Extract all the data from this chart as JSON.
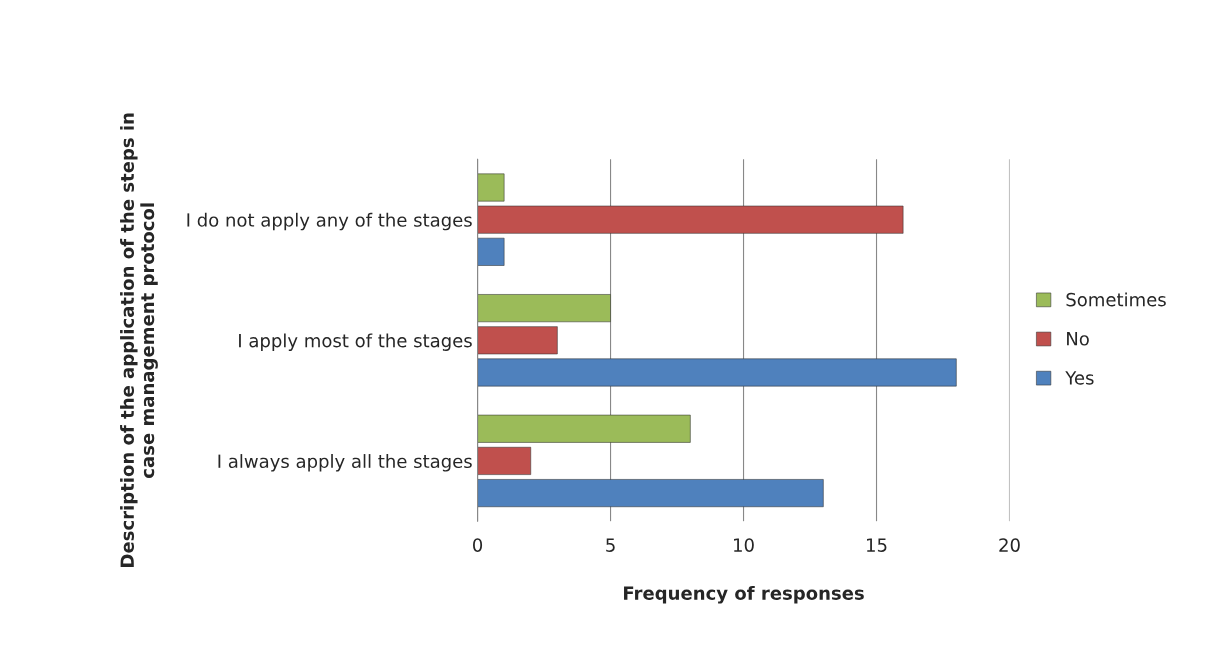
{
  "chart_data": {
    "type": "bar",
    "orientation": "horizontal",
    "xlabel": "Frequency of responses",
    "ylabel": "Description of the application of the steps in\ncase management protocol",
    "categories": [
      "I do not apply any of the stages",
      "I apply most of the stages",
      "I always apply all the stages"
    ],
    "series": [
      {
        "name": "Yes",
        "color": "#4f81bd",
        "values": [
          1,
          18,
          13
        ]
      },
      {
        "name": "No",
        "color": "#c0504d",
        "values": [
          16,
          3,
          2
        ]
      },
      {
        "name": "Sometimes",
        "color": "#9bbb59",
        "values": [
          1,
          5,
          8
        ]
      }
    ],
    "xlim": [
      0,
      20
    ],
    "xticks": [
      0,
      5,
      10,
      15,
      20
    ],
    "grid": "x",
    "legend": "right"
  }
}
